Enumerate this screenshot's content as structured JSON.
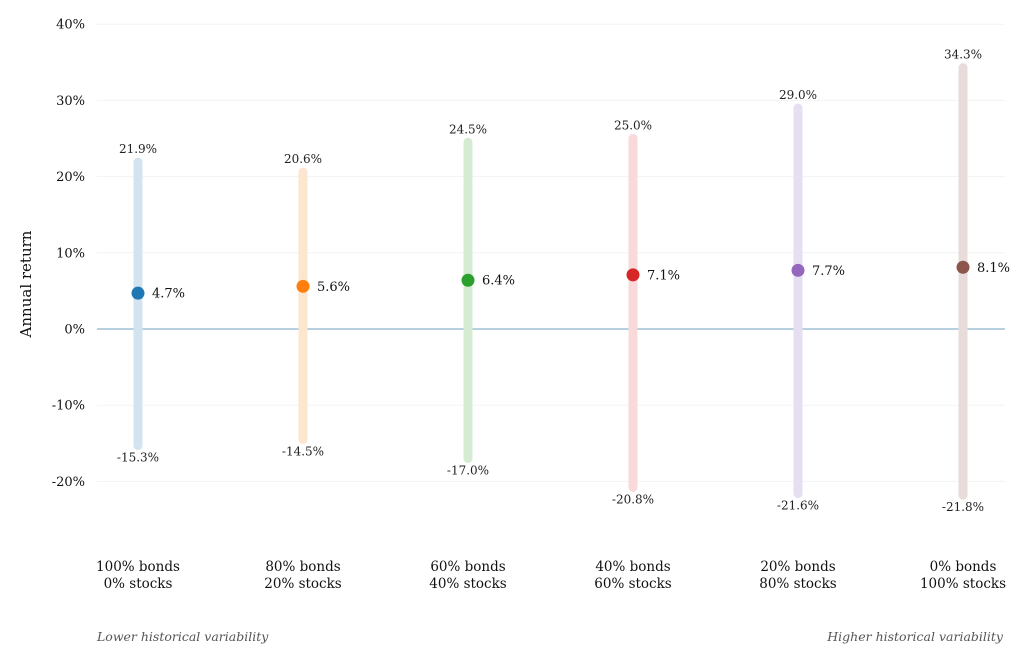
{
  "chart_data": {
    "type": "range",
    "ylabel": "Annual return",
    "ylim": [
      -20,
      40
    ],
    "yticks": [
      40,
      30,
      20,
      10,
      0,
      -10,
      -20
    ],
    "ytick_labels": [
      "40%",
      "30%",
      "20%",
      "10%",
      "0%",
      "-10%",
      "-20%"
    ],
    "grid": true,
    "zero_line_color": "#8ab4cc",
    "categories": [
      [
        "100% bonds",
        "0% stocks"
      ],
      [
        "80% bonds",
        "20% stocks"
      ],
      [
        "60% bonds",
        "40% stocks"
      ],
      [
        "40% bonds",
        "60% stocks"
      ],
      [
        "20% bonds",
        "80% stocks"
      ],
      [
        "0% bonds",
        "100% stocks"
      ]
    ],
    "series": [
      {
        "average": 4.7,
        "average_label": "4.7%",
        "high": 21.9,
        "high_label": "21.9%",
        "low": -15.3,
        "low_label": "-15.3%",
        "color": "#1f77b4",
        "bar_color": "#d3e3ef"
      },
      {
        "average": 5.6,
        "average_label": "5.6%",
        "high": 20.6,
        "high_label": "20.6%",
        "low": -14.5,
        "low_label": "-14.5%",
        "color": "#ff7f0e",
        "bar_color": "#fde6cf"
      },
      {
        "average": 6.4,
        "average_label": "6.4%",
        "high": 24.5,
        "high_label": "24.5%",
        "low": -17.0,
        "low_label": "-17.0%",
        "color": "#2ca02c",
        "bar_color": "#d5ecd3"
      },
      {
        "average": 7.1,
        "average_label": "7.1%",
        "high": 25.0,
        "high_label": "25.0%",
        "low": -20.8,
        "low_label": "-20.8%",
        "color": "#d62728",
        "bar_color": "#f9d9da"
      },
      {
        "average": 7.7,
        "average_label": "7.7%",
        "high": 29.0,
        "high_label": "29.0%",
        "low": -21.6,
        "low_label": "-21.6%",
        "color": "#9467bd",
        "bar_color": "#e6def1"
      },
      {
        "average": 8.1,
        "average_label": "8.1%",
        "high": 34.3,
        "high_label": "34.3%",
        "low": -21.8,
        "low_label": "-21.8%",
        "color": "#8c564b",
        "bar_color": "#e7dcda"
      }
    ],
    "annotations": {
      "left": "Lower historical variability",
      "right": "Higher historical variability"
    }
  }
}
